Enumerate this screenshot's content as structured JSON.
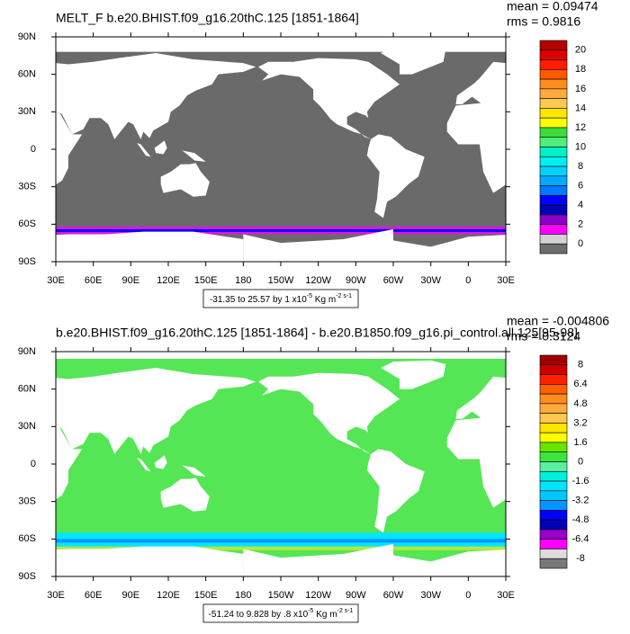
{
  "panels": [
    {
      "title": "MELT_F b.e20.BHIST.f09_g16.20thC.125 [1851-1864]",
      "mean": "mean = 0.09474",
      "rms": "rms = 0.9816",
      "colorbar": {
        "labels": [
          20,
          18,
          16,
          14,
          12,
          10,
          8,
          6,
          4,
          2,
          0
        ],
        "colors": [
          "#b40000",
          "#dc0000",
          "#ff1e00",
          "#ff5a00",
          "#ff8c1e",
          "#ffaa3c",
          "#ffc850",
          "#ffe600",
          "#ffff00",
          "#3cdc3c",
          "#50f078",
          "#00f0c8",
          "#00f0f0",
          "#00d2ff",
          "#00aaff",
          "#0078ff",
          "#0000ff",
          "#0000b4",
          "#8c00c8",
          "#ff00ff",
          "#d2d2d2",
          "#6e6e6e"
        ]
      },
      "info": {
        "text": "-31.35 to 25.57 by 1 x10",
        "exponent": "-5",
        "unit": " Kg m",
        "unit_exponent": "-2 s-1"
      }
    },
    {
      "title": "b.e20.BHIST.f09_g16.20thC.125 [1851-1864] - b.e20.B1850.f09_g16.pi_control.all.125[95-98]",
      "mean": "mean = -0.004806",
      "rms": "rms = 0.3124",
      "colorbar": {
        "labels": [
          8,
          6.4,
          4.8,
          3.2,
          1.6,
          0,
          -1.6,
          -3.2,
          -4.8,
          -6.4,
          -8
        ],
        "colors": [
          "#a00000",
          "#d00000",
          "#ff2000",
          "#ff6000",
          "#ff8c1e",
          "#ffaa3c",
          "#ffc850",
          "#ffe600",
          "#ffff00",
          "#64e600",
          "#3ce63c",
          "#5af0a0",
          "#00f0dc",
          "#00e6ff",
          "#00c8ff",
          "#0096ff",
          "#0000ff",
          "#0000b4",
          "#9600c8",
          "#ff00ff",
          "#dcdcdc",
          "#787878"
        ]
      },
      "info": {
        "text": "-51.24 to 9.828 by .8 x10",
        "exponent": "-5",
        "unit": " Kg m",
        "unit_exponent": "-2 s-1"
      }
    }
  ],
  "lon_labels": [
    "30E",
    "60E",
    "90E",
    "120E",
    "150E",
    "180",
    "150W",
    "120W",
    "90W",
    "60W",
    "30W",
    "0",
    "30E"
  ],
  "lat_labels": [
    "90N",
    "60N",
    "30N",
    "0",
    "30S",
    "60S",
    "90S"
  ]
}
